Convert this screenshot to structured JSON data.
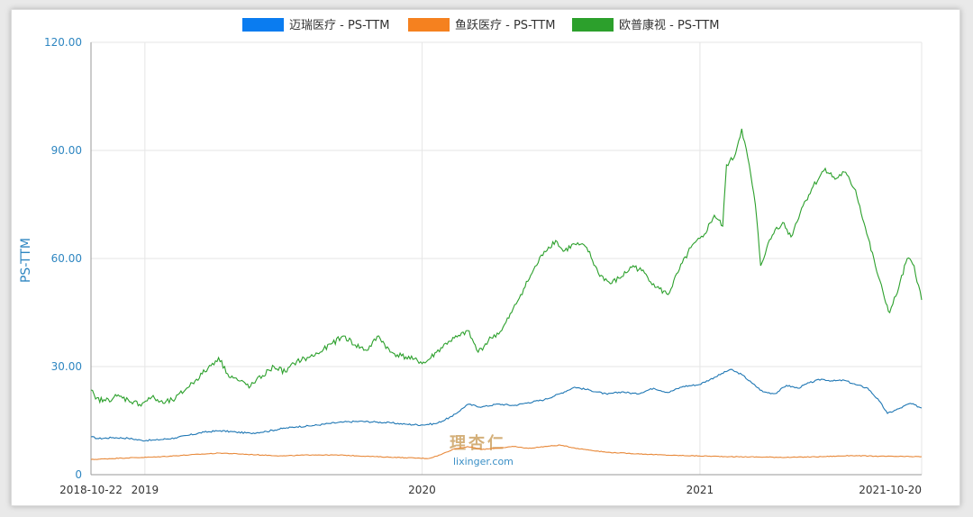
{
  "chart_data": {
    "type": "line",
    "ylabel": "PS-TTM",
    "ylim": [
      0,
      120
    ],
    "yticks": [
      "0",
      "30.00",
      "60.00",
      "90.00",
      "120.00"
    ],
    "x_start": "2018-10-22",
    "x_end": "2021-10-20",
    "xticks": [
      {
        "label": "2018-10-22",
        "date": "2018-10-22"
      },
      {
        "label": "2019",
        "date": "2019-01-01"
      },
      {
        "label": "2020",
        "date": "2020-01-01"
      },
      {
        "label": "2021",
        "date": "2021-01-01"
      },
      {
        "label": "2021-10-20",
        "date": "2021-10-20"
      }
    ],
    "grid": true,
    "legend_position": "top-center",
    "series": [
      {
        "name": "迈瑞医疗 - PS-TTM",
        "color": "#1f77b4",
        "legend_color": "#0a7cf0",
        "points": [
          [
            "2018-10-22",
            10.5
          ],
          [
            "2018-11-01",
            10.0
          ],
          [
            "2018-11-20",
            10.3
          ],
          [
            "2018-12-10",
            10.1
          ],
          [
            "2018-12-28",
            9.5
          ],
          [
            "2019-01-15",
            9.6
          ],
          [
            "2019-02-10",
            10.2
          ],
          [
            "2019-03-01",
            11.0
          ],
          [
            "2019-03-20",
            11.8
          ],
          [
            "2019-04-10",
            12.2
          ],
          [
            "2019-05-01",
            11.8
          ],
          [
            "2019-05-20",
            11.5
          ],
          [
            "2019-06-10",
            12.0
          ],
          [
            "2019-07-01",
            12.8
          ],
          [
            "2019-07-20",
            13.3
          ],
          [
            "2019-08-10",
            13.6
          ],
          [
            "2019-09-01",
            14.2
          ],
          [
            "2019-09-20",
            14.6
          ],
          [
            "2019-10-10",
            14.8
          ],
          [
            "2019-11-01",
            14.6
          ],
          [
            "2019-11-20",
            14.4
          ],
          [
            "2019-12-10",
            14.0
          ],
          [
            "2019-12-31",
            13.8
          ],
          [
            "2020-01-20",
            14.2
          ],
          [
            "2020-02-10",
            16.2
          ],
          [
            "2020-03-01",
            19.5
          ],
          [
            "2020-03-20",
            18.8
          ],
          [
            "2020-04-10",
            19.6
          ],
          [
            "2020-05-01",
            19.2
          ],
          [
            "2020-05-20",
            20.0
          ],
          [
            "2020-06-10",
            20.8
          ],
          [
            "2020-07-01",
            22.5
          ],
          [
            "2020-07-20",
            24.3
          ],
          [
            "2020-08-10",
            23.4
          ],
          [
            "2020-09-01",
            22.3
          ],
          [
            "2020-09-20",
            23.0
          ],
          [
            "2020-10-10",
            22.4
          ],
          [
            "2020-11-01",
            24.0
          ],
          [
            "2020-11-20",
            22.8
          ],
          [
            "2020-12-10",
            24.5
          ],
          [
            "2020-12-31",
            25.0
          ],
          [
            "2021-01-20",
            27.0
          ],
          [
            "2021-02-10",
            29.2
          ],
          [
            "2021-02-25",
            27.8
          ],
          [
            "2021-03-10",
            25.5
          ],
          [
            "2021-03-25",
            23.0
          ],
          [
            "2021-04-10",
            22.5
          ],
          [
            "2021-04-25",
            24.8
          ],
          [
            "2021-05-10",
            24.0
          ],
          [
            "2021-05-25",
            25.5
          ],
          [
            "2021-06-10",
            26.5
          ],
          [
            "2021-06-25",
            26.0
          ],
          [
            "2021-07-10",
            26.2
          ],
          [
            "2021-07-25",
            25.0
          ],
          [
            "2021-08-10",
            24.0
          ],
          [
            "2021-08-25",
            20.5
          ],
          [
            "2021-09-05",
            17.0
          ],
          [
            "2021-09-20",
            18.3
          ],
          [
            "2021-10-05",
            19.8
          ],
          [
            "2021-10-20",
            18.5
          ]
        ]
      },
      {
        "name": "鱼跃医疗 - PS-TTM",
        "color": "#e8893a",
        "legend_color": "#f5811f",
        "points": [
          [
            "2018-10-22",
            4.2
          ],
          [
            "2018-12-01",
            4.6
          ],
          [
            "2019-01-15",
            4.9
          ],
          [
            "2019-03-01",
            5.5
          ],
          [
            "2019-04-10",
            6.0
          ],
          [
            "2019-05-20",
            5.6
          ],
          [
            "2019-07-01",
            5.2
          ],
          [
            "2019-08-10",
            5.5
          ],
          [
            "2019-09-20",
            5.4
          ],
          [
            "2019-11-01",
            5.0
          ],
          [
            "2019-12-10",
            4.7
          ],
          [
            "2020-01-10",
            4.5
          ],
          [
            "2020-01-25",
            5.5
          ],
          [
            "2020-02-10",
            7.0
          ],
          [
            "2020-03-01",
            7.8
          ],
          [
            "2020-03-20",
            7.0
          ],
          [
            "2020-04-10",
            7.4
          ],
          [
            "2020-05-01",
            7.8
          ],
          [
            "2020-05-20",
            7.3
          ],
          [
            "2020-06-10",
            7.8
          ],
          [
            "2020-07-01",
            8.2
          ],
          [
            "2020-07-20",
            7.4
          ],
          [
            "2020-08-10",
            6.8
          ],
          [
            "2020-09-01",
            6.2
          ],
          [
            "2020-10-10",
            5.8
          ],
          [
            "2020-11-20",
            5.4
          ],
          [
            "2020-12-31",
            5.2
          ],
          [
            "2021-02-10",
            5.0
          ],
          [
            "2021-03-20",
            4.9
          ],
          [
            "2021-05-01",
            4.8
          ],
          [
            "2021-06-10",
            5.0
          ],
          [
            "2021-07-20",
            5.3
          ],
          [
            "2021-08-25",
            5.1
          ],
          [
            "2021-10-20",
            5.0
          ]
        ]
      },
      {
        "name": "欧普康视 - PS-TTM",
        "color": "#2ca02c",
        "legend_color": "#2ca02c",
        "points": [
          [
            "2018-10-22",
            23.5
          ],
          [
            "2018-10-28",
            21.0
          ],
          [
            "2018-11-10",
            20.5
          ],
          [
            "2018-11-25",
            21.8
          ],
          [
            "2018-12-10",
            20.8
          ],
          [
            "2018-12-25",
            19.5
          ],
          [
            "2019-01-10",
            21.5
          ],
          [
            "2019-01-25",
            19.8
          ],
          [
            "2019-02-10",
            21.0
          ],
          [
            "2019-02-25",
            24.0
          ],
          [
            "2019-03-10",
            26.5
          ],
          [
            "2019-03-25",
            29.5
          ],
          [
            "2019-04-08",
            32.5
          ],
          [
            "2019-04-20",
            28.0
          ],
          [
            "2019-05-05",
            26.0
          ],
          [
            "2019-05-20",
            24.5
          ],
          [
            "2019-06-05",
            27.5
          ],
          [
            "2019-06-20",
            30.0
          ],
          [
            "2019-07-05",
            28.5
          ],
          [
            "2019-07-20",
            31.5
          ],
          [
            "2019-08-05",
            32.5
          ],
          [
            "2019-08-20",
            34.0
          ],
          [
            "2019-09-05",
            36.5
          ],
          [
            "2019-09-20",
            38.5
          ],
          [
            "2019-10-05",
            36.0
          ],
          [
            "2019-10-20",
            34.5
          ],
          [
            "2019-11-05",
            38.5
          ],
          [
            "2019-11-20",
            34.0
          ],
          [
            "2019-12-05",
            33.0
          ],
          [
            "2019-12-20",
            32.0
          ],
          [
            "2020-01-05",
            31.0
          ],
          [
            "2020-01-20",
            34.0
          ],
          [
            "2020-02-05",
            37.0
          ],
          [
            "2020-02-20",
            38.5
          ],
          [
            "2020-03-01",
            40.0
          ],
          [
            "2020-03-15",
            34.0
          ],
          [
            "2020-04-01",
            38.0
          ],
          [
            "2020-04-15",
            40.0
          ],
          [
            "2020-04-28",
            45.0
          ],
          [
            "2020-05-10",
            50.0
          ],
          [
            "2020-05-25",
            56.0
          ],
          [
            "2020-06-10",
            62.0
          ],
          [
            "2020-06-25",
            65.0
          ],
          [
            "2020-07-05",
            62.0
          ],
          [
            "2020-07-20",
            64.0
          ],
          [
            "2020-08-05",
            63.0
          ],
          [
            "2020-08-20",
            56.0
          ],
          [
            "2020-09-05",
            53.0
          ],
          [
            "2020-09-20",
            55.0
          ],
          [
            "2020-10-05",
            58.0
          ],
          [
            "2020-10-20",
            56.0
          ],
          [
            "2020-11-05",
            52.0
          ],
          [
            "2020-11-20",
            50.0
          ],
          [
            "2020-12-05",
            57.0
          ],
          [
            "2020-12-20",
            63.0
          ],
          [
            "2021-01-05",
            66.0
          ],
          [
            "2021-01-20",
            72.0
          ],
          [
            "2021-01-31",
            69.0
          ],
          [
            "2021-02-05",
            86.0
          ],
          [
            "2021-02-15",
            88.0
          ],
          [
            "2021-02-25",
            96.0
          ],
          [
            "2021-03-05",
            88.0
          ],
          [
            "2021-03-15",
            75.0
          ],
          [
            "2021-03-22",
            58.0
          ],
          [
            "2021-03-30",
            63.0
          ],
          [
            "2021-04-10",
            68.0
          ],
          [
            "2021-04-20",
            70.0
          ],
          [
            "2021-05-01",
            66.0
          ],
          [
            "2021-05-15",
            74.0
          ],
          [
            "2021-05-30",
            80.0
          ],
          [
            "2021-06-15",
            85.0
          ],
          [
            "2021-06-28",
            82.0
          ],
          [
            "2021-07-10",
            84.0
          ],
          [
            "2021-07-25",
            79.0
          ],
          [
            "2021-08-05",
            70.0
          ],
          [
            "2021-08-20",
            58.0
          ],
          [
            "2021-09-01",
            49.0
          ],
          [
            "2021-09-08",
            45.0
          ],
          [
            "2021-09-20",
            52.0
          ],
          [
            "2021-10-01",
            60.0
          ],
          [
            "2021-10-10",
            58.0
          ],
          [
            "2021-10-20",
            48.5
          ]
        ]
      }
    ]
  },
  "watermark": {
    "logo_text": "理杏仁",
    "url": "lixinger.com"
  }
}
